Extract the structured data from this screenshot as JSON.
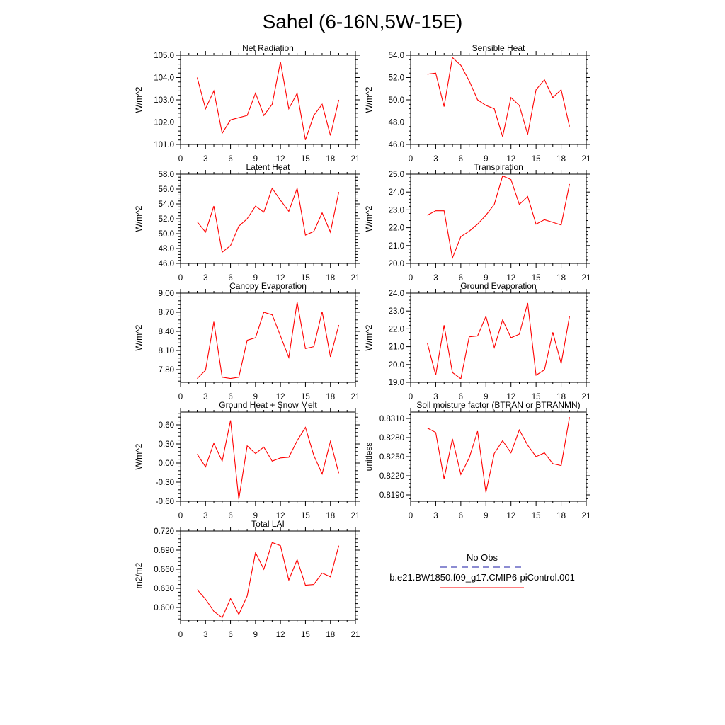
{
  "figure": {
    "title": "Sahel (6-16N,5W-15E)"
  },
  "legend": {
    "obs_label": "No Obs",
    "model_label": "b.e21.BW1850.f09_g17.CMIP6-piControl.001",
    "obs_color": "#1a1aa6",
    "model_color": "#ff0000"
  },
  "chart_data": [
    {
      "type": "line",
      "title": "Net Radiation",
      "ylabel": "W/m^2",
      "xlim": [
        0,
        21
      ],
      "xticks": [
        "0",
        "3",
        "6",
        "9",
        "12",
        "15",
        "18",
        "21"
      ],
      "ylim": [
        101.0,
        105.0
      ],
      "yticks": [
        "101.0",
        "102.0",
        "103.0",
        "104.0",
        "105.0"
      ],
      "color": "#ff0000",
      "x": [
        2,
        3,
        4,
        5,
        6,
        7,
        8,
        9,
        10,
        11,
        12,
        13,
        14,
        15,
        16,
        17,
        18,
        19
      ],
      "y": [
        104.0,
        102.6,
        103.4,
        101.5,
        102.1,
        102.2,
        102.3,
        103.3,
        102.3,
        102.8,
        104.7,
        102.6,
        103.3,
        101.2,
        102.3,
        102.8,
        101.4,
        103.0
      ]
    },
    {
      "type": "line",
      "title": "Sensible Heat",
      "ylabel": "W/m^2",
      "xlim": [
        0,
        21
      ],
      "xticks": [
        "0",
        "3",
        "6",
        "9",
        "12",
        "15",
        "18",
        "21"
      ],
      "ylim": [
        46.0,
        54.0
      ],
      "yticks": [
        "46.0",
        "48.0",
        "50.0",
        "52.0",
        "54.0"
      ],
      "color": "#ff0000",
      "x": [
        2,
        3,
        4,
        5,
        6,
        7,
        8,
        9,
        10,
        11,
        12,
        13,
        14,
        15,
        16,
        17,
        18,
        19
      ],
      "y": [
        52.3,
        52.4,
        49.4,
        53.8,
        53.1,
        51.7,
        50.0,
        49.5,
        49.2,
        46.7,
        50.2,
        49.5,
        46.9,
        50.9,
        51.8,
        50.2,
        50.9,
        47.6
      ]
    },
    {
      "type": "line",
      "title": "Latent Heat",
      "ylabel": "W/m^2",
      "xlim": [
        0,
        21
      ],
      "xticks": [
        "0",
        "3",
        "6",
        "9",
        "12",
        "15",
        "18",
        "21"
      ],
      "ylim": [
        46.0,
        58.0
      ],
      "yticks": [
        "46.0",
        "48.0",
        "50.0",
        "52.0",
        "54.0",
        "56.0",
        "58.0"
      ],
      "color": "#ff0000",
      "x": [
        2,
        3,
        4,
        5,
        6,
        7,
        8,
        9,
        10,
        11,
        12,
        13,
        14,
        15,
        16,
        17,
        18,
        19
      ],
      "y": [
        51.6,
        50.2,
        53.7,
        47.5,
        48.4,
        51.0,
        52.0,
        53.7,
        52.9,
        56.1,
        54.5,
        53.0,
        56.1,
        49.8,
        50.3,
        52.8,
        50.2,
        55.6
      ]
    },
    {
      "type": "line",
      "title": "Transpiration",
      "ylabel": "W/m^2",
      "xlim": [
        0,
        21
      ],
      "xticks": [
        "0",
        "3",
        "6",
        "9",
        "12",
        "15",
        "18",
        "21"
      ],
      "ylim": [
        20.0,
        25.0
      ],
      "yticks": [
        "20.0",
        "21.0",
        "22.0",
        "23.0",
        "24.0",
        "25.0"
      ],
      "color": "#ff0000",
      "x": [
        2,
        3,
        4,
        5,
        6,
        7,
        8,
        9,
        10,
        11,
        12,
        13,
        14,
        15,
        16,
        17,
        18,
        19
      ],
      "y": [
        22.7,
        22.95,
        22.95,
        20.3,
        21.5,
        21.8,
        22.2,
        22.7,
        23.3,
        24.9,
        24.7,
        23.3,
        23.75,
        22.2,
        22.45,
        22.3,
        22.15,
        24.45
      ]
    },
    {
      "type": "line",
      "title": "Canopy Evaporation",
      "ylabel": "W/m^2",
      "xlim": [
        0,
        21
      ],
      "xticks": [
        "0",
        "3",
        "6",
        "9",
        "12",
        "15",
        "18",
        "21"
      ],
      "ylim": [
        7.6,
        9.0
      ],
      "yticks": [
        "7.80",
        "8.10",
        "8.40",
        "8.70",
        "9.00"
      ],
      "color": "#ff0000",
      "x": [
        2,
        3,
        4,
        5,
        6,
        7,
        8,
        9,
        10,
        11,
        12,
        13,
        14,
        15,
        16,
        17,
        18,
        19
      ],
      "y": [
        7.66,
        7.79,
        8.55,
        7.68,
        7.66,
        7.68,
        8.26,
        8.3,
        8.7,
        8.66,
        8.33,
        7.99,
        8.86,
        8.13,
        8.16,
        8.71,
        8.0,
        8.5
      ]
    },
    {
      "type": "line",
      "title": "Ground Evaporation",
      "ylabel": "W/m^2",
      "xlim": [
        0,
        21
      ],
      "xticks": [
        "0",
        "3",
        "6",
        "9",
        "12",
        "15",
        "18",
        "21"
      ],
      "ylim": [
        19.0,
        24.0
      ],
      "yticks": [
        "19.0",
        "20.0",
        "21.0",
        "22.0",
        "23.0",
        "24.0"
      ],
      "color": "#ff0000",
      "x": [
        2,
        3,
        4,
        5,
        6,
        7,
        8,
        9,
        10,
        11,
        12,
        13,
        14,
        15,
        16,
        17,
        18,
        19
      ],
      "y": [
        21.2,
        19.4,
        22.2,
        19.55,
        19.2,
        21.55,
        21.6,
        22.7,
        20.95,
        22.5,
        21.5,
        21.7,
        23.45,
        19.4,
        19.7,
        21.8,
        20.05,
        22.7
      ]
    },
    {
      "type": "line",
      "title": "Ground Heat + Snow Melt",
      "ylabel": "W/m^2",
      "xlim": [
        0,
        21
      ],
      "xticks": [
        "0",
        "3",
        "6",
        "9",
        "12",
        "15",
        "18",
        "21"
      ],
      "ylim": [
        -0.6,
        0.8
      ],
      "yticks": [
        "-0.60",
        "-0.30",
        "0.00",
        "0.30",
        "0.60"
      ],
      "color": "#ff0000",
      "x": [
        2,
        3,
        4,
        5,
        6,
        7,
        8,
        9,
        10,
        11,
        12,
        13,
        14,
        15,
        16,
        17,
        18,
        19
      ],
      "y": [
        0.14,
        -0.06,
        0.31,
        0.03,
        0.67,
        -0.57,
        0.27,
        0.15,
        0.25,
        0.03,
        0.08,
        0.09,
        0.35,
        0.56,
        0.12,
        -0.17,
        0.34,
        -0.16
      ]
    },
    {
      "type": "line",
      "title": "Soil moisture factor (BTRAN or BTRANMN)",
      "ylabel": "unitless",
      "xlim": [
        0,
        21
      ],
      "xticks": [
        "0",
        "3",
        "6",
        "9",
        "12",
        "15",
        "18",
        "21"
      ],
      "ylim": [
        0.818,
        0.832
      ],
      "yticks": [
        "0.8190",
        "0.8220",
        "0.8250",
        "0.8280",
        "0.8310"
      ],
      "color": "#ff0000",
      "x": [
        2,
        3,
        4,
        5,
        6,
        7,
        8,
        9,
        10,
        11,
        12,
        13,
        14,
        15,
        16,
        17,
        18,
        19
      ],
      "y": [
        0.8295,
        0.8288,
        0.8215,
        0.8278,
        0.8222,
        0.8248,
        0.829,
        0.8194,
        0.8255,
        0.8275,
        0.8256,
        0.8292,
        0.8268,
        0.825,
        0.8256,
        0.8239,
        0.8236,
        0.8312
      ]
    },
    {
      "type": "line",
      "title": "Total LAI",
      "ylabel": "m2/m2",
      "xlim": [
        0,
        21
      ],
      "xticks": [
        "0",
        "3",
        "6",
        "9",
        "12",
        "15",
        "18",
        "21"
      ],
      "ylim": [
        0.58,
        0.72
      ],
      "yticks": [
        "0.600",
        "0.630",
        "0.660",
        "0.690",
        "0.720"
      ],
      "color": "#ff0000",
      "x": [
        2,
        3,
        4,
        5,
        6,
        7,
        8,
        9,
        10,
        11,
        12,
        13,
        14,
        15,
        16,
        17,
        18,
        19
      ],
      "y": [
        0.628,
        0.613,
        0.594,
        0.584,
        0.614,
        0.589,
        0.618,
        0.686,
        0.66,
        0.702,
        0.697,
        0.643,
        0.675,
        0.635,
        0.636,
        0.654,
        0.648,
        0.697
      ]
    }
  ]
}
